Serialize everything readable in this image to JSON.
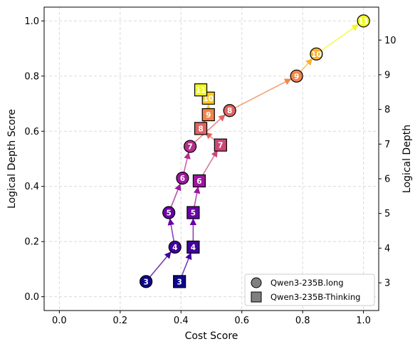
{
  "chart_data": {
    "type": "scatter",
    "xlabel": "Cost Score",
    "ylabel": "Logical Depth Score",
    "y2label": "Logical Depth",
    "xlim": [
      -0.05,
      1.05
    ],
    "ylim": [
      -0.05,
      1.05
    ],
    "y2lim": [
      2.2,
      10.95
    ],
    "x_ticks": [
      "0.0",
      "0.2",
      "0.4",
      "0.6",
      "0.8",
      "1.0"
    ],
    "y_ticks": [
      "0.0",
      "0.2",
      "0.4",
      "0.6",
      "0.8",
      "1.0"
    ],
    "y2_ticks": [
      "3",
      "4",
      "5",
      "6",
      "7",
      "8",
      "9",
      "10"
    ],
    "grid": true,
    "legend_position": "lower-right",
    "colormap": "plasma",
    "series": [
      {
        "name": "Qwen3-235B.long",
        "marker": "circle",
        "points": [
          {
            "x": 0.285,
            "y": 0.055,
            "depth": "3",
            "color": "#0d0887"
          },
          {
            "x": 0.38,
            "y": 0.18,
            "depth": "4",
            "color": "#41049d"
          },
          {
            "x": 0.36,
            "y": 0.305,
            "depth": "5",
            "color": "#6a00a8"
          },
          {
            "x": 0.405,
            "y": 0.43,
            "depth": "6",
            "color": "#9c179e"
          },
          {
            "x": 0.43,
            "y": 0.545,
            "depth": "7",
            "color": "#b52f8c"
          },
          {
            "x": 0.56,
            "y": 0.675,
            "depth": "8",
            "color": "#e16462"
          },
          {
            "x": 0.78,
            "y": 0.8,
            "depth": "9",
            "color": "#f2844b"
          },
          {
            "x": 0.845,
            "y": 0.88,
            "depth": "10",
            "color": "#fbb32f"
          },
          {
            "x": 1.0,
            "y": 1.0,
            "depth": "11",
            "color": "#f0f921"
          }
        ]
      },
      {
        "name": "Qwen3-235B-Thinking",
        "marker": "square",
        "points": [
          {
            "x": 0.395,
            "y": 0.055,
            "depth": "3",
            "color": "#0d0887"
          },
          {
            "x": 0.44,
            "y": 0.18,
            "depth": "4",
            "color": "#41049d"
          },
          {
            "x": 0.44,
            "y": 0.305,
            "depth": "5",
            "color": "#6a00a8"
          },
          {
            "x": 0.46,
            "y": 0.42,
            "depth": "6",
            "color": "#9c179e"
          },
          {
            "x": 0.53,
            "y": 0.55,
            "depth": "7",
            "color": "#cc4778"
          },
          {
            "x": 0.465,
            "y": 0.61,
            "depth": "8",
            "color": "#e16462"
          },
          {
            "x": 0.49,
            "y": 0.66,
            "depth": "9",
            "color": "#f2844b"
          },
          {
            "x": 0.49,
            "y": 0.72,
            "depth": "10",
            "color": "#fdca26"
          },
          {
            "x": 0.465,
            "y": 0.75,
            "depth": "11",
            "color": "#f0f921"
          }
        ]
      }
    ]
  }
}
